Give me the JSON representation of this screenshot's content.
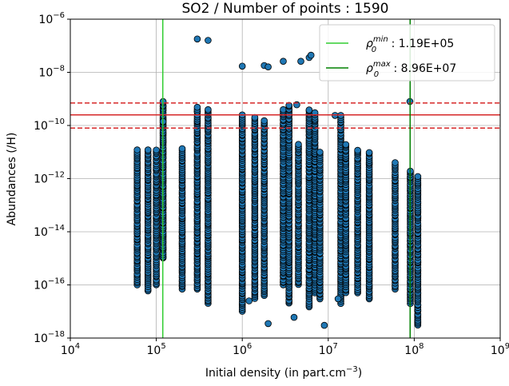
{
  "chart_data": {
    "type": "scatter",
    "title": "SO2 / Number of points : 1590",
    "xlabel": "Initial density (in part.cm",
    "xlabel_sup": "−3",
    "xlabel_tail": ")",
    "ylabel": "Abundances (/H)",
    "x_scale": "log",
    "y_scale": "log",
    "xlim": [
      10000,
      1000000000
    ],
    "ylim": [
      1e-18,
      1e-06
    ],
    "x_ticks": [
      {
        "value": 10000,
        "base": "10",
        "exp": "4"
      },
      {
        "value": 100000,
        "base": "10",
        "exp": "5"
      },
      {
        "value": 1000000,
        "base": "10",
        "exp": "6"
      },
      {
        "value": 10000000,
        "base": "10",
        "exp": "7"
      },
      {
        "value": 100000000,
        "base": "10",
        "exp": "8"
      },
      {
        "value": 1000000000,
        "base": "10",
        "exp": "9"
      }
    ],
    "y_ticks": [
      {
        "value": 1e-18,
        "base": "10",
        "exp": "−18"
      },
      {
        "value": 1e-16,
        "base": "10",
        "exp": "−16"
      },
      {
        "value": 1e-14,
        "base": "10",
        "exp": "−14"
      },
      {
        "value": 1e-12,
        "base": "10",
        "exp": "−12"
      },
      {
        "value": 1e-10,
        "base": "10",
        "exp": "−10"
      },
      {
        "value": 1e-08,
        "base": "10",
        "exp": "−8"
      },
      {
        "value": 1e-06,
        "base": "10",
        "exp": "−6"
      }
    ],
    "grid": true,
    "legend_position": "top-right",
    "point_color": "#1f77b4",
    "point_edge_color": "#000000",
    "vlines": [
      {
        "x": 119000,
        "color": "#32cd32",
        "label_base": "ρ",
        "label_sub": "0",
        "label_sup": "min",
        "label_value": " : 1.19E+05"
      },
      {
        "x": 89600000,
        "color": "#008000",
        "label_base": "ρ",
        "label_sub": "0",
        "label_sup": "max",
        "label_value": " : 8.96E+07"
      }
    ],
    "hlines": [
      {
        "y": 2.5e-10,
        "color": "#d62728",
        "style": "solid"
      },
      {
        "y": 7e-10,
        "color": "#d62728",
        "style": "dashed"
      },
      {
        "y": 8e-11,
        "color": "#d62728",
        "style": "dashed"
      }
    ],
    "columns": [
      {
        "x": 60000,
        "ymin": 1e-16,
        "ymax": 1.2e-11
      },
      {
        "x": 80000,
        "ymin": 6e-17,
        "ymax": 1.2e-11
      },
      {
        "x": 100000,
        "ymin": 1e-16,
        "ymax": 1.2e-11
      },
      {
        "x": 120000,
        "ymin": 1e-15,
        "ymax": 8e-10
      },
      {
        "x": 200000,
        "ymin": 7e-17,
        "ymax": 1.4e-11
      },
      {
        "x": 300000,
        "ymin": 7e-17,
        "ymax": 5e-10
      },
      {
        "x": 400000,
        "ymin": 2e-17,
        "ymax": 4e-10
      },
      {
        "x": 1000000,
        "ymin": 1e-17,
        "ymax": 2.5e-10
      },
      {
        "x": 1400000,
        "ymin": 3e-17,
        "ymax": 2e-10
      },
      {
        "x": 1800000,
        "ymin": 4e-17,
        "ymax": 1.5e-10
      },
      {
        "x": 3000000,
        "ymin": 1e-16,
        "ymax": 4e-10
      },
      {
        "x": 3500000,
        "ymin": 2e-17,
        "ymax": 6e-10
      },
      {
        "x": 4500000,
        "ymin": 1e-16,
        "ymax": 2e-11
      },
      {
        "x": 6000000,
        "ymin": 1.5e-17,
        "ymax": 4e-10
      },
      {
        "x": 7000000,
        "ymin": 5e-17,
        "ymax": 3e-10
      },
      {
        "x": 8000000,
        "ymin": 3e-17,
        "ymax": 1e-11
      },
      {
        "x": 14000000,
        "ymin": 2e-17,
        "ymax": 2e-10
      },
      {
        "x": 16000000,
        "ymin": 5e-17,
        "ymax": 2e-11
      },
      {
        "x": 22000000,
        "ymin": 5e-17,
        "ymax": 1.2e-11
      },
      {
        "x": 30000000,
        "ymin": 3e-17,
        "ymax": 1e-11
      },
      {
        "x": 60000000,
        "ymin": 7e-17,
        "ymax": 4e-12
      },
      {
        "x": 90000000,
        "ymin": 2e-17,
        "ymax": 2e-12
      },
      {
        "x": 110000000,
        "ymin": 3e-18,
        "ymax": 1.2e-12
      }
    ],
    "extra_points": [
      {
        "x": 300000,
        "y": 1.8e-07
      },
      {
        "x": 400000,
        "y": 1.6e-07
      },
      {
        "x": 1000000,
        "y": 1.7e-08
      },
      {
        "x": 1800000,
        "y": 1.8e-08
      },
      {
        "x": 2000000,
        "y": 1.6e-08
      },
      {
        "x": 3000000,
        "y": 2.6e-08
      },
      {
        "x": 4800000,
        "y": 2.6e-08
      },
      {
        "x": 6000000,
        "y": 3.6e-08
      },
      {
        "x": 6300000,
        "y": 4.4e-08
      },
      {
        "x": 4300000,
        "y": 6e-10
      },
      {
        "x": 12000000,
        "y": 2.4e-10
      },
      {
        "x": 14000000,
        "y": 2.4e-10
      },
      {
        "x": 89000000,
        "y": 8e-10
      },
      {
        "x": 120000,
        "y": 1.4e-10
      },
      {
        "x": 4000000,
        "y": 6e-18
      },
      {
        "x": 1200000,
        "y": 2.5e-17
      },
      {
        "x": 2000000,
        "y": 3.5e-18
      },
      {
        "x": 9000000,
        "y": 3e-18
      },
      {
        "x": 13000000,
        "y": 3e-17
      }
    ]
  }
}
